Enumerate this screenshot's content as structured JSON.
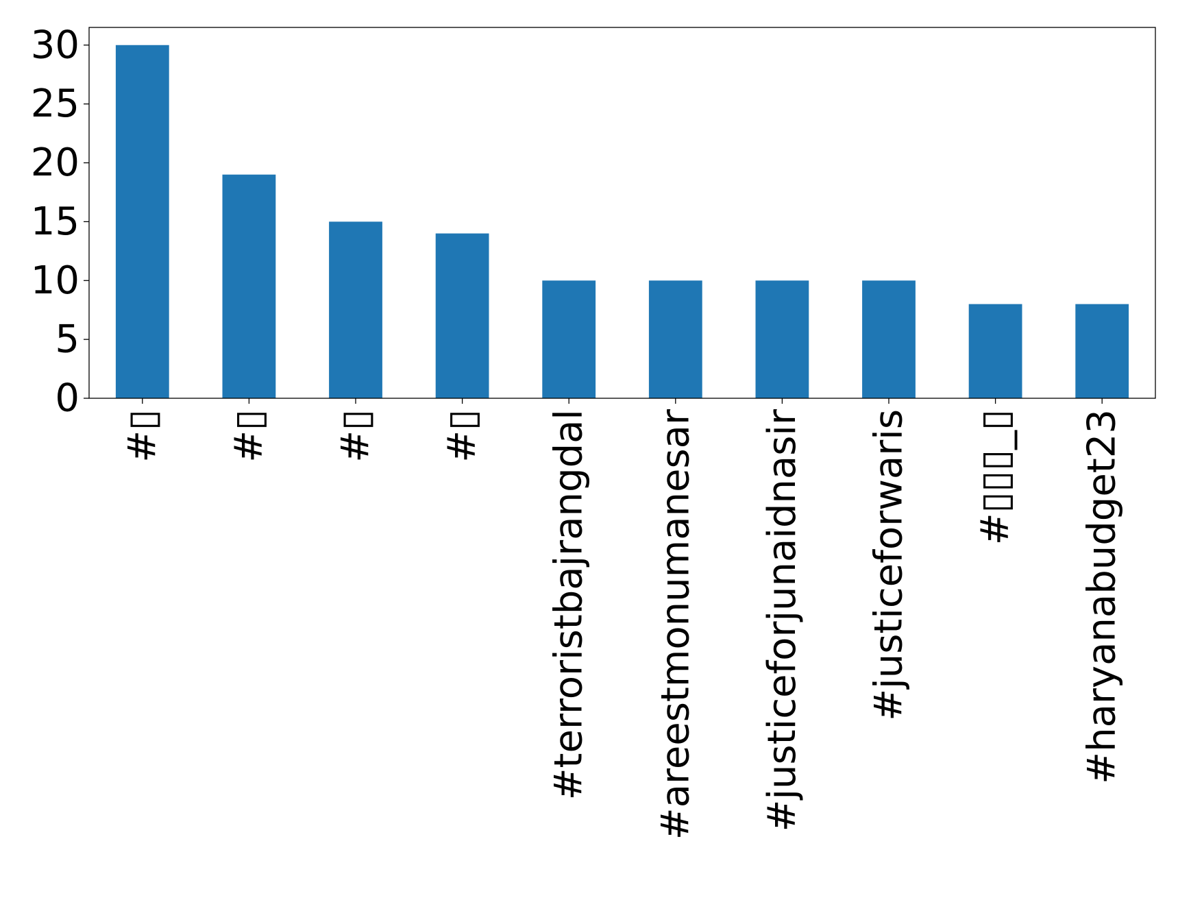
{
  "chart_data": {
    "type": "bar",
    "title": "",
    "xlabel": "",
    "ylabel": "",
    "categories": [
      "#▯",
      "#▯",
      "#▯",
      "#▯",
      "#terroristbajrangdal",
      "#areestmonumanesar",
      "#justiceforjunaidnasir",
      "#justiceforwaris",
      "#▯▯▯_▯",
      "#haryanabudget23"
    ],
    "values": [
      30,
      19,
      15,
      14,
      10,
      10,
      10,
      10,
      8,
      8
    ],
    "ylim": [
      0,
      31.5
    ],
    "yticks": [
      0,
      5,
      10,
      15,
      20,
      25,
      30
    ],
    "grid": false,
    "legend": "none",
    "bar_color": "#1f77b4"
  }
}
